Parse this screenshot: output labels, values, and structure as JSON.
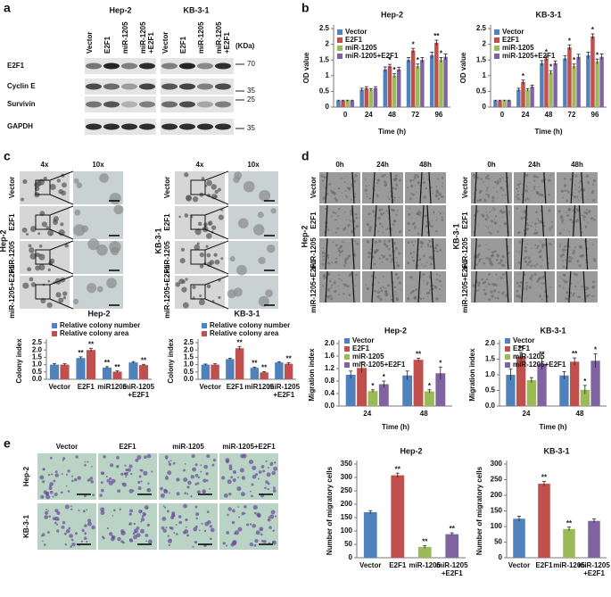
{
  "panels": {
    "a": {
      "letter": "a",
      "cell_lines": [
        "Hep-2",
        "KB-3-1"
      ],
      "lanes": [
        "Vector",
        "E2F1",
        "miR-1205",
        "miR-1205 +E2F1"
      ],
      "unit": "(KDa)",
      "proteins": [
        "E2F1",
        "Cyclin E",
        "Survivin",
        "GAPDH"
      ],
      "markers": [
        70,
        35,
        25,
        35
      ]
    },
    "b": {
      "letter": "b"
    },
    "c": {
      "letter": "c",
      "magnifications": [
        "4x",
        "10x"
      ],
      "rows": [
        "Vector",
        "E2F1",
        "miR-1205",
        "miR-1205+E2F1"
      ],
      "cell_lines": [
        "Hep-2",
        "KB-3-1"
      ]
    },
    "d": {
      "letter": "d",
      "times": [
        "0h",
        "24h",
        "48h"
      ],
      "rows": [
        "Vector",
        "E2F1",
        "miR-1205",
        "miR-1205+E2F1"
      ],
      "cell_lines": [
        "Hep-2",
        "KB-3-1"
      ]
    },
    "e": {
      "letter": "e",
      "columns": [
        "Vector",
        "E2F1",
        "miR-1205",
        "miR-1205+E2F1"
      ],
      "rows": [
        "Hep-2",
        "KB-3-1"
      ]
    }
  },
  "chart_data": [
    {
      "type": "bar",
      "title": "Hep-2",
      "x_label": "Time (h)",
      "y_label": "OD value",
      "categories": [
        "0",
        "24",
        "48",
        "72",
        "96"
      ],
      "ylim": [
        0,
        2.5
      ],
      "yticks": [
        0,
        0.5,
        1,
        1.5,
        2,
        2.5
      ],
      "legend": "upper left",
      "series": [
        {
          "name": "Vector",
          "color": "#4f81bd",
          "values": [
            0.2,
            0.55,
            1.2,
            1.5,
            1.65
          ],
          "errors": [
            0.02,
            0.05,
            0.08,
            0.08,
            0.1
          ]
        },
        {
          "name": "E2F1",
          "color": "#c0504d",
          "values": [
            0.2,
            0.6,
            1.3,
            1.8,
            2.05
          ],
          "errors": [
            0.02,
            0.05,
            0.06,
            0.07,
            0.08
          ],
          "significance": [
            null,
            null,
            "*",
            "*",
            "**"
          ]
        },
        {
          "name": "miR-1205",
          "color": "#9bbb59",
          "values": [
            0.2,
            0.55,
            1.0,
            1.3,
            1.5
          ],
          "errors": [
            0.02,
            0.04,
            0.06,
            0.07,
            0.08
          ],
          "significance": [
            null,
            null,
            "*",
            "*",
            "*"
          ]
        },
        {
          "name": "miR-1205+E2F1",
          "color": "#8064a2",
          "values": [
            0.2,
            0.6,
            1.2,
            1.5,
            1.6
          ],
          "errors": [
            0.02,
            0.05,
            0.07,
            0.08,
            0.09
          ]
        }
      ]
    },
    {
      "type": "bar",
      "title": "KB-3-1",
      "x_label": "Time (h)",
      "y_label": "OD value",
      "categories": [
        "0",
        "24",
        "48",
        "72",
        "96"
      ],
      "ylim": [
        0,
        2.5
      ],
      "yticks": [
        0,
        0.5,
        1,
        1.5,
        2,
        2.5
      ],
      "legend": "upper left",
      "series": [
        {
          "name": "Vector",
          "color": "#4f81bd",
          "values": [
            0.2,
            0.55,
            1.4,
            1.55,
            1.65
          ],
          "errors": [
            0.02,
            0.05,
            0.08,
            0.08,
            0.1
          ]
        },
        {
          "name": "E2F1",
          "color": "#c0504d",
          "values": [
            0.2,
            0.8,
            1.55,
            1.9,
            2.25
          ],
          "errors": [
            0.02,
            0.06,
            0.07,
            0.08,
            0.08
          ],
          "significance": [
            null,
            "*",
            "*",
            "*",
            "*"
          ]
        },
        {
          "name": "miR-1205",
          "color": "#9bbb59",
          "values": [
            0.2,
            0.55,
            1.1,
            1.3,
            1.45
          ],
          "errors": [
            0.02,
            0.04,
            0.06,
            0.07,
            0.08
          ],
          "significance": [
            null,
            null,
            "*",
            "*",
            "*"
          ]
        },
        {
          "name": "miR-1205+E2F1",
          "color": "#8064a2",
          "values": [
            0.2,
            0.65,
            1.4,
            1.6,
            1.6
          ],
          "errors": [
            0.02,
            0.05,
            0.07,
            0.08,
            0.09
          ]
        }
      ]
    },
    {
      "type": "bar",
      "title": "Hep-2",
      "y_label": "Colony index",
      "categories": [
        "Vector",
        "E2F1",
        "miR1205",
        "miR-1205 +E2F1"
      ],
      "ylim": [
        0,
        2.5
      ],
      "yticks": [
        {
          "value": 0,
          "label": "0.0"
        },
        0.5,
        {
          "value": 1,
          "label": "1.0"
        },
        1.5,
        {
          "value": 2,
          "label": "2.0"
        },
        2.5
      ],
      "legend": "upper left",
      "series": [
        {
          "name": "Relative colony number",
          "color": "#4f81bd",
          "values": [
            1.0,
            1.45,
            0.8,
            1.15
          ],
          "errors": [
            0.06,
            0.08,
            0.06,
            0.06
          ],
          "significance": [
            null,
            "**",
            "**",
            null
          ]
        },
        {
          "name": "Relative colony area",
          "color": "#c0504d",
          "values": [
            1.0,
            2.0,
            0.52,
            0.97
          ],
          "errors": [
            0.06,
            0.12,
            0.05,
            0.05
          ],
          "significance": [
            null,
            "**",
            "**",
            "**"
          ]
        }
      ]
    },
    {
      "type": "bar",
      "title": "KB-3-1",
      "y_label": "Colony index",
      "categories": [
        "Vector",
        "E2F1",
        "miR1205",
        "miR-1205 +E2F1"
      ],
      "ylim": [
        0,
        2.5
      ],
      "yticks": [
        {
          "value": 0,
          "label": "0.0"
        },
        0.5,
        {
          "value": 1,
          "label": "1.0"
        },
        1.5,
        {
          "value": 2,
          "label": "2.0"
        },
        2.5
      ],
      "legend": "upper left",
      "series": [
        {
          "name": "Relative colony number",
          "color": "#4f81bd",
          "values": [
            1.0,
            1.38,
            0.78,
            1.15
          ],
          "errors": [
            0.04,
            0.06,
            0.05,
            0.05
          ],
          "significance": [
            null,
            null,
            "**",
            null
          ]
        },
        {
          "name": "Relative colony area",
          "color": "#c0504d",
          "values": [
            1.0,
            2.12,
            0.47,
            1.06
          ],
          "errors": [
            0.06,
            0.12,
            0.05,
            0.08
          ],
          "significance": [
            null,
            "**",
            "**",
            "**"
          ]
        }
      ]
    },
    {
      "type": "bar",
      "title": "Hep-2",
      "x_label": "Time (h)",
      "y_label": "Migration index",
      "categories": [
        "24",
        "48"
      ],
      "ylim": [
        0,
        2.0
      ],
      "yticks": [
        {
          "value": 0,
          "label": "0.0"
        },
        0.4,
        0.8,
        1.2,
        1.6,
        {
          "value": 2,
          "label": "2.0"
        }
      ],
      "legend": "upper left",
      "series": [
        {
          "name": "Vector",
          "color": "#4f81bd",
          "values": [
            1.0,
            0.98
          ],
          "errors": [
            0.12,
            0.14
          ]
        },
        {
          "name": "E2F1",
          "color": "#c0504d",
          "values": [
            1.22,
            1.48
          ],
          "errors": [
            0.16,
            0.05
          ],
          "significance": [
            null,
            "**"
          ]
        },
        {
          "name": "miR-1205",
          "color": "#9bbb59",
          "values": [
            0.48,
            0.47
          ],
          "errors": [
            0.04,
            0.05
          ],
          "significance": [
            "*",
            "*"
          ]
        },
        {
          "name": "miR-1205+E2F1",
          "color": "#8064a2",
          "values": [
            0.7,
            1.05
          ],
          "errors": [
            0.1,
            0.2
          ],
          "significance": [
            "*",
            "*"
          ]
        }
      ]
    },
    {
      "type": "bar",
      "title": "KB-3-1",
      "x_label": "Time (h)",
      "y_label": "Migration index",
      "categories": [
        "24",
        "48"
      ],
      "ylim": [
        0,
        2.0
      ],
      "yticks": [
        {
          "value": 0,
          "label": "0.0"
        },
        0.5,
        {
          "value": 1,
          "label": "1.0"
        },
        1.5,
        {
          "value": 2,
          "label": "2.0"
        }
      ],
      "legend": "upper left",
      "series": [
        {
          "name": "Vector",
          "color": "#4f81bd",
          "values": [
            1.0,
            0.98
          ],
          "errors": [
            0.18,
            0.12
          ]
        },
        {
          "name": "E2F1",
          "color": "#c0504d",
          "values": [
            1.58,
            1.42
          ],
          "errors": [
            0.14,
            0.12
          ],
          "significance": [
            "**",
            "**"
          ]
        },
        {
          "name": "miR-1205",
          "color": "#9bbb59",
          "values": [
            0.83,
            0.52
          ],
          "errors": [
            0.08,
            0.14
          ],
          "significance": [
            null,
            "*"
          ]
        },
        {
          "name": "miR-1205+E2F1",
          "color": "#8064a2",
          "values": [
            1.35,
            1.45
          ],
          "errors": [
            0.18,
            0.22
          ],
          "significance": [
            "**",
            "*"
          ]
        }
      ]
    },
    {
      "type": "bar",
      "title": "Hep-2",
      "y_label": "Number of migratory cells",
      "categories": [
        "Vector",
        "E2F1",
        "miR-1205",
        "miR-1205 +E2F1"
      ],
      "ylim": [
        0,
        350
      ],
      "yticks": [
        0,
        50,
        100,
        150,
        200,
        250,
        300,
        350
      ],
      "values": [
        170,
        308,
        40,
        88
      ],
      "errors": [
        6,
        8,
        5,
        5
      ],
      "colors": [
        "#4f81bd",
        "#c0504d",
        "#9bbb59",
        "#8064a2"
      ],
      "significance": [
        null,
        "**",
        "**",
        "**"
      ]
    },
    {
      "type": "bar",
      "title": "KB-3-1",
      "y_label": "Number of migratory cells",
      "categories": [
        "Vector",
        "E2F1",
        "miR-1205",
        "miR-1205 +E2F1"
      ],
      "ylim": [
        0,
        300
      ],
      "yticks": [
        0,
        50,
        100,
        150,
        200,
        250,
        300
      ],
      "values": [
        125,
        237,
        92,
        118
      ],
      "errors": [
        8,
        7,
        6,
        6
      ],
      "colors": [
        "#4f81bd",
        "#c0504d",
        "#9bbb59",
        "#8064a2"
      ],
      "significance": [
        null,
        "**",
        "**",
        null
      ]
    }
  ]
}
